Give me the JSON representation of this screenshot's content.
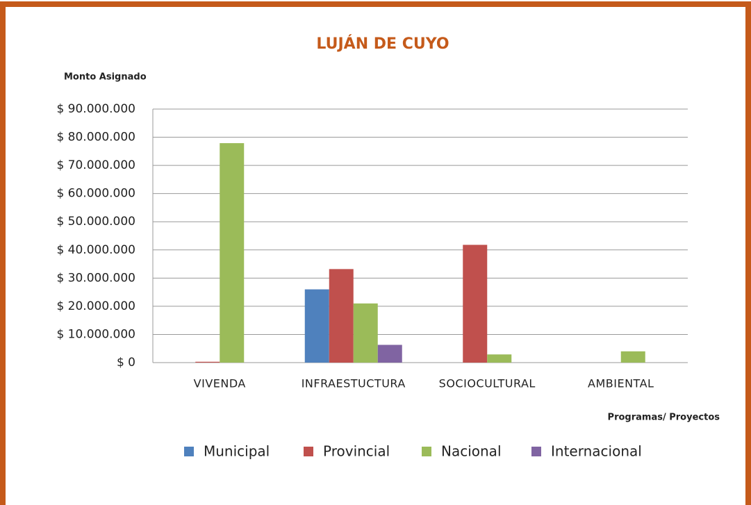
{
  "chart_data": {
    "type": "bar",
    "title": "LUJÁN DE CUYO",
    "y_label": "Monto Asignado",
    "x_label": "Programas/ Proyectos",
    "categories": [
      "VIVENDA",
      "INFRAESTUCTURA",
      "SOCIOCULTURAL",
      "AMBIENTAL"
    ],
    "series": [
      {
        "name": "Municipal",
        "color": "#4f81bd",
        "values": [
          0,
          26000000,
          0,
          0
        ]
      },
      {
        "name": "Provincial",
        "color": "#c0504d",
        "values": [
          300000,
          33200000,
          41800000,
          0
        ]
      },
      {
        "name": "Nacional",
        "color": "#9bbb59",
        "values": [
          77900000,
          21000000,
          2900000,
          4000000
        ]
      },
      {
        "name": "Internacional",
        "color": "#8064a2",
        "values": [
          0,
          6300000,
          0,
          0
        ]
      }
    ],
    "ylim": [
      0,
      90000000
    ],
    "yticks": [
      {
        "value": 0,
        "label": "$ 0"
      },
      {
        "value": 10000000,
        "label": "$ 10.000.000"
      },
      {
        "value": 20000000,
        "label": "$ 20.000.000"
      },
      {
        "value": 30000000,
        "label": "$ 30.000.000"
      },
      {
        "value": 40000000,
        "label": "$ 40.000.000"
      },
      {
        "value": 50000000,
        "label": "$ 50.000.000"
      },
      {
        "value": 60000000,
        "label": "$ 60.000.000"
      },
      {
        "value": 70000000,
        "label": "$ 70.000.000"
      },
      {
        "value": 80000000,
        "label": "$ 80.000.000"
      },
      {
        "value": 90000000,
        "label": "$ 90.000.000"
      }
    ],
    "grid": true,
    "legend": "bottom"
  }
}
